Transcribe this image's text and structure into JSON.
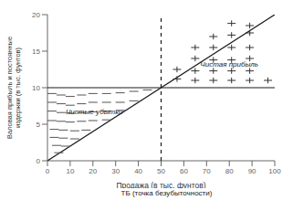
{
  "chart_data": {
    "type": "line",
    "xlabel": "Продажа (в тыс. фунтов)",
    "ylabel": "Валовая прибыль и постоянные\nиздержки (в тыс. фунтов)",
    "xlim": [
      0,
      100
    ],
    "ylim": [
      0,
      20
    ],
    "xticks": [
      0,
      10,
      20,
      30,
      40,
      50,
      60,
      70,
      80,
      90,
      100
    ],
    "yticks": [
      0,
      5,
      10,
      15,
      20
    ],
    "series": [
      {
        "type": "line",
        "color": "#1a1a1a",
        "x": [
          0,
          100
        ],
        "values": [
          0,
          20
        ]
      },
      {
        "type": "line",
        "color": "#1a1a1a",
        "x": [
          0,
          100
        ],
        "values": [
          10,
          10
        ]
      },
      {
        "type": "line",
        "color": "#1a1a1a",
        "line_style": "dashed",
        "x": [
          50,
          50
        ],
        "values": [
          0,
          20
        ]
      },
      {
        "type": "scatter",
        "marker": "dash",
        "color": "#555555",
        "x": [
          2,
          6,
          10,
          15,
          20,
          26,
          32,
          38,
          44,
          2,
          6,
          10,
          15,
          20,
          26,
          32,
          38,
          2,
          6,
          10,
          15,
          20,
          26,
          32,
          2,
          6,
          10,
          15,
          20,
          26,
          3,
          7,
          12,
          17,
          3,
          7,
          12,
          4,
          8,
          5
        ],
        "values": [
          9.2,
          9.0,
          8.8,
          9.0,
          9.2,
          9.2,
          9.3,
          9.5,
          9.7,
          8.0,
          7.8,
          7.6,
          7.8,
          8.0,
          8.0,
          8.0,
          8.2,
          6.8,
          6.6,
          6.5,
          6.6,
          6.7,
          6.8,
          6.9,
          5.5,
          5.4,
          5.3,
          5.4,
          5.5,
          5.6,
          4.3,
          4.2,
          4.1,
          4.2,
          3.2,
          3.1,
          3.0,
          2.1,
          2.0,
          1.1
        ]
      },
      {
        "type": "scatter",
        "marker": "plus",
        "color": "#333333",
        "x": [
          57,
          65,
          73,
          81,
          89,
          97,
          57,
          65,
          73,
          81,
          89,
          65,
          73,
          81,
          89,
          65,
          73,
          81,
          89,
          73,
          81,
          89,
          81,
          89
        ],
        "values": [
          11.2,
          11.0,
          11.0,
          11.0,
          11.0,
          11.0,
          12.5,
          12.3,
          12.3,
          12.3,
          12.3,
          14.0,
          13.8,
          13.8,
          14.0,
          15.5,
          15.5,
          15.5,
          15.5,
          17.0,
          17.2,
          17.5,
          18.8,
          18.5
        ]
      }
    ],
    "annotations": [
      {
        "text": "Чистые убытки",
        "x": 8,
        "y": 6.8
      },
      {
        "text": "Чистая прибыль",
        "x": 80,
        "y": 13.2
      },
      {
        "text": "ТБ (точка безубыточности)"
      }
    ]
  }
}
